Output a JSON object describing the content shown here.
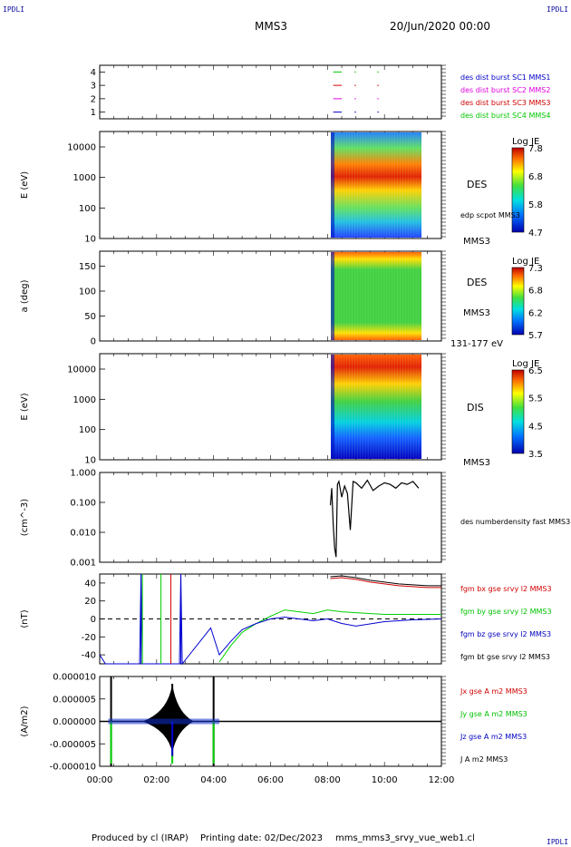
{
  "header": {
    "corner_label": "IPDLI",
    "spacecraft": "MMS3",
    "date": "20/Jun/2020 00:00"
  },
  "footer": {
    "produced_by": "Produced by cl (IRAP)",
    "printing_date": "Printing date: 02/Dec/2023",
    "filename": "mms_mms3_srvy_vue_web1.cl"
  },
  "colors": {
    "mms1": "#0000c8",
    "mms2": "#e000e0",
    "mms3": "#d00000",
    "mms4": "#00c800",
    "bx": "#d00000",
    "by": "#00d000",
    "bz": "#0000d0",
    "bt": "#000000"
  },
  "chart_data": [
    {
      "type": "line",
      "name": "availability",
      "ylabel": "",
      "yticks": [
        "1",
        "2",
        "3",
        "4"
      ],
      "ylim": [
        0.5,
        4.5
      ],
      "series": [
        {
          "name": "des dist burst SC1 MMS1",
          "y": 1,
          "segments": [
            [
              8.2,
              8.5
            ],
            [
              8.95,
              9.0
            ],
            [
              9.75,
              9.8
            ]
          ]
        },
        {
          "name": "des dist burst SC2 MMS2",
          "y": 2,
          "segments": [
            [
              8.2,
              8.5
            ],
            [
              8.95,
              9.0
            ],
            [
              9.75,
              9.8
            ]
          ]
        },
        {
          "name": "des dist burst SC3 MMS3",
          "y": 3,
          "segments": [
            [
              8.2,
              8.5
            ],
            [
              8.95,
              9.0
            ],
            [
              9.75,
              9.8
            ]
          ]
        },
        {
          "name": "des dist burst SC4 MMS4",
          "y": 4,
          "segments": [
            [
              8.2,
              8.5
            ],
            [
              8.95,
              9.0
            ],
            [
              9.75,
              9.8
            ]
          ]
        }
      ]
    },
    {
      "type": "heatmap",
      "name": "des-energy-spectrogram",
      "ylabel": "E (eV)",
      "yscale": "log",
      "yticks": [
        "10",
        "100",
        "1000",
        "10000"
      ],
      "instrument_label": "DES",
      "overlay_label": "edp scpot MMS3",
      "spacecraft_label": "MMS3",
      "colorbar": {
        "label": "Log JE",
        "ticks": [
          "7.8",
          "6.8",
          "5.8",
          "4.7"
        ]
      },
      "data_start": "08:07",
      "data_end": "11:18",
      "peak_energy_eV": 1000
    },
    {
      "type": "heatmap",
      "name": "des-pitch-angle",
      "ylabel": "a (deg)",
      "yticks": [
        "0",
        "50",
        "100",
        "150"
      ],
      "ylim": [
        0,
        180
      ],
      "instrument_label": "DES",
      "spacecraft_label": "MMS3",
      "energy_range_label": "131-177 eV",
      "colorbar": {
        "label": "Log JE",
        "ticks": [
          "7.3",
          "6.8",
          "6.2",
          "5.7"
        ]
      },
      "data_start": "08:07",
      "data_end": "11:18"
    },
    {
      "type": "heatmap",
      "name": "dis-energy-spectrogram",
      "ylabel": "E (eV)",
      "yscale": "log",
      "yticks": [
        "10",
        "100",
        "1000",
        "10000"
      ],
      "instrument_label": "DIS",
      "spacecraft_label": "MMS3",
      "colorbar": {
        "label": "Log JE",
        "ticks": [
          "6.5",
          "5.5",
          "4.5",
          "3.5"
        ]
      },
      "data_start": "08:07",
      "data_end": "11:18",
      "peak_energy_eV": 5000
    },
    {
      "type": "line",
      "name": "density",
      "ylabel": "(cm^-3)",
      "yscale": "log",
      "yticks": [
        "0.001",
        "0.010",
        "0.100",
        "1.000"
      ],
      "ylim": [
        0.001,
        1.0
      ],
      "series": [
        {
          "name": "des numberdensity fast MMS3",
          "x": [
            8.1,
            8.15,
            8.2,
            8.25,
            8.3,
            8.35,
            8.4,
            8.5,
            8.6,
            8.7,
            8.8,
            8.9,
            9.0,
            9.2,
            9.4,
            9.6,
            9.8,
            10.0,
            10.2,
            10.4,
            10.6,
            10.8,
            11.0,
            11.2
          ],
          "y": [
            0.08,
            0.3,
            0.02,
            0.003,
            0.0015,
            0.4,
            0.5,
            0.15,
            0.35,
            0.2,
            0.012,
            0.5,
            0.45,
            0.3,
            0.55,
            0.25,
            0.35,
            0.45,
            0.4,
            0.3,
            0.45,
            0.4,
            0.5,
            0.3
          ]
        }
      ]
    },
    {
      "type": "line",
      "name": "magnetic-field",
      "ylabel": "(nT)",
      "yticks": [
        "-40",
        "-20",
        "0",
        "20",
        "40"
      ],
      "ylim": [
        -50,
        50
      ],
      "zero_line": true,
      "series": [
        {
          "name": "fgm bx gse srvy l2 MMS3",
          "x": [
            8.1,
            8.5,
            9.0,
            9.5,
            10.0,
            10.5,
            11.0,
            11.5,
            12.0
          ],
          "y": [
            45,
            46,
            44,
            41,
            39,
            37,
            36,
            35,
            35
          ]
        },
        {
          "name": "fgm by gse srvy l2 MMS3",
          "x": [
            4.2,
            4.6,
            5.0,
            5.5,
            6.0,
            6.5,
            7.0,
            7.5,
            8.0,
            8.5,
            9.0,
            10.0,
            11.0,
            12.0
          ],
          "y": [
            -48,
            -30,
            -15,
            -5,
            3,
            10,
            8,
            6,
            10,
            8,
            7,
            5,
            5,
            5
          ]
        },
        {
          "name": "fgm bz gse srvy l2 MMS3",
          "x": [
            0,
            0.2,
            1.4,
            1.45,
            1.5,
            2.8,
            2.85,
            2.9,
            3.9,
            4.2,
            4.6,
            5.0,
            5.5,
            6.0,
            6.5,
            7.0,
            7.5,
            8.0,
            8.5,
            9.0,
            10.0,
            11.0,
            12.0
          ],
          "y": [
            -40,
            -50,
            -50,
            50,
            -50,
            -50,
            50,
            -50,
            -10,
            -40,
            -25,
            -12,
            -5,
            0,
            2,
            0,
            -2,
            0,
            -5,
            -8,
            -3,
            -1,
            0
          ]
        },
        {
          "name": "fgm bt gse srvy l2 MMS3",
          "x": [
            8.1,
            8.5,
            9.0,
            9.5,
            10.0,
            10.5,
            11.0,
            11.5,
            12.0
          ],
          "y": [
            47,
            48,
            46,
            43,
            41,
            39,
            38,
            37,
            37
          ]
        }
      ]
    },
    {
      "type": "line",
      "name": "current-density",
      "ylabel": "(A/m2)",
      "yticks": [
        "-0.000010",
        "-0.000005",
        "0.000000",
        "0.000005",
        "0.000010"
      ],
      "ylim": [
        -1e-05,
        1e-05
      ],
      "series": [
        {
          "name": "Jx gse A m2 MMS3"
        },
        {
          "name": "Jy gse A m2 MMS3"
        },
        {
          "name": "Jz gse A m2 MMS3"
        },
        {
          "name": "J A m2 MMS3"
        }
      ]
    }
  ],
  "xaxis": {
    "ticks": [
      "00:00",
      "02:00",
      "04:00",
      "06:00",
      "08:00",
      "10:00",
      "12:00"
    ],
    "range_hours": [
      0,
      12
    ]
  }
}
